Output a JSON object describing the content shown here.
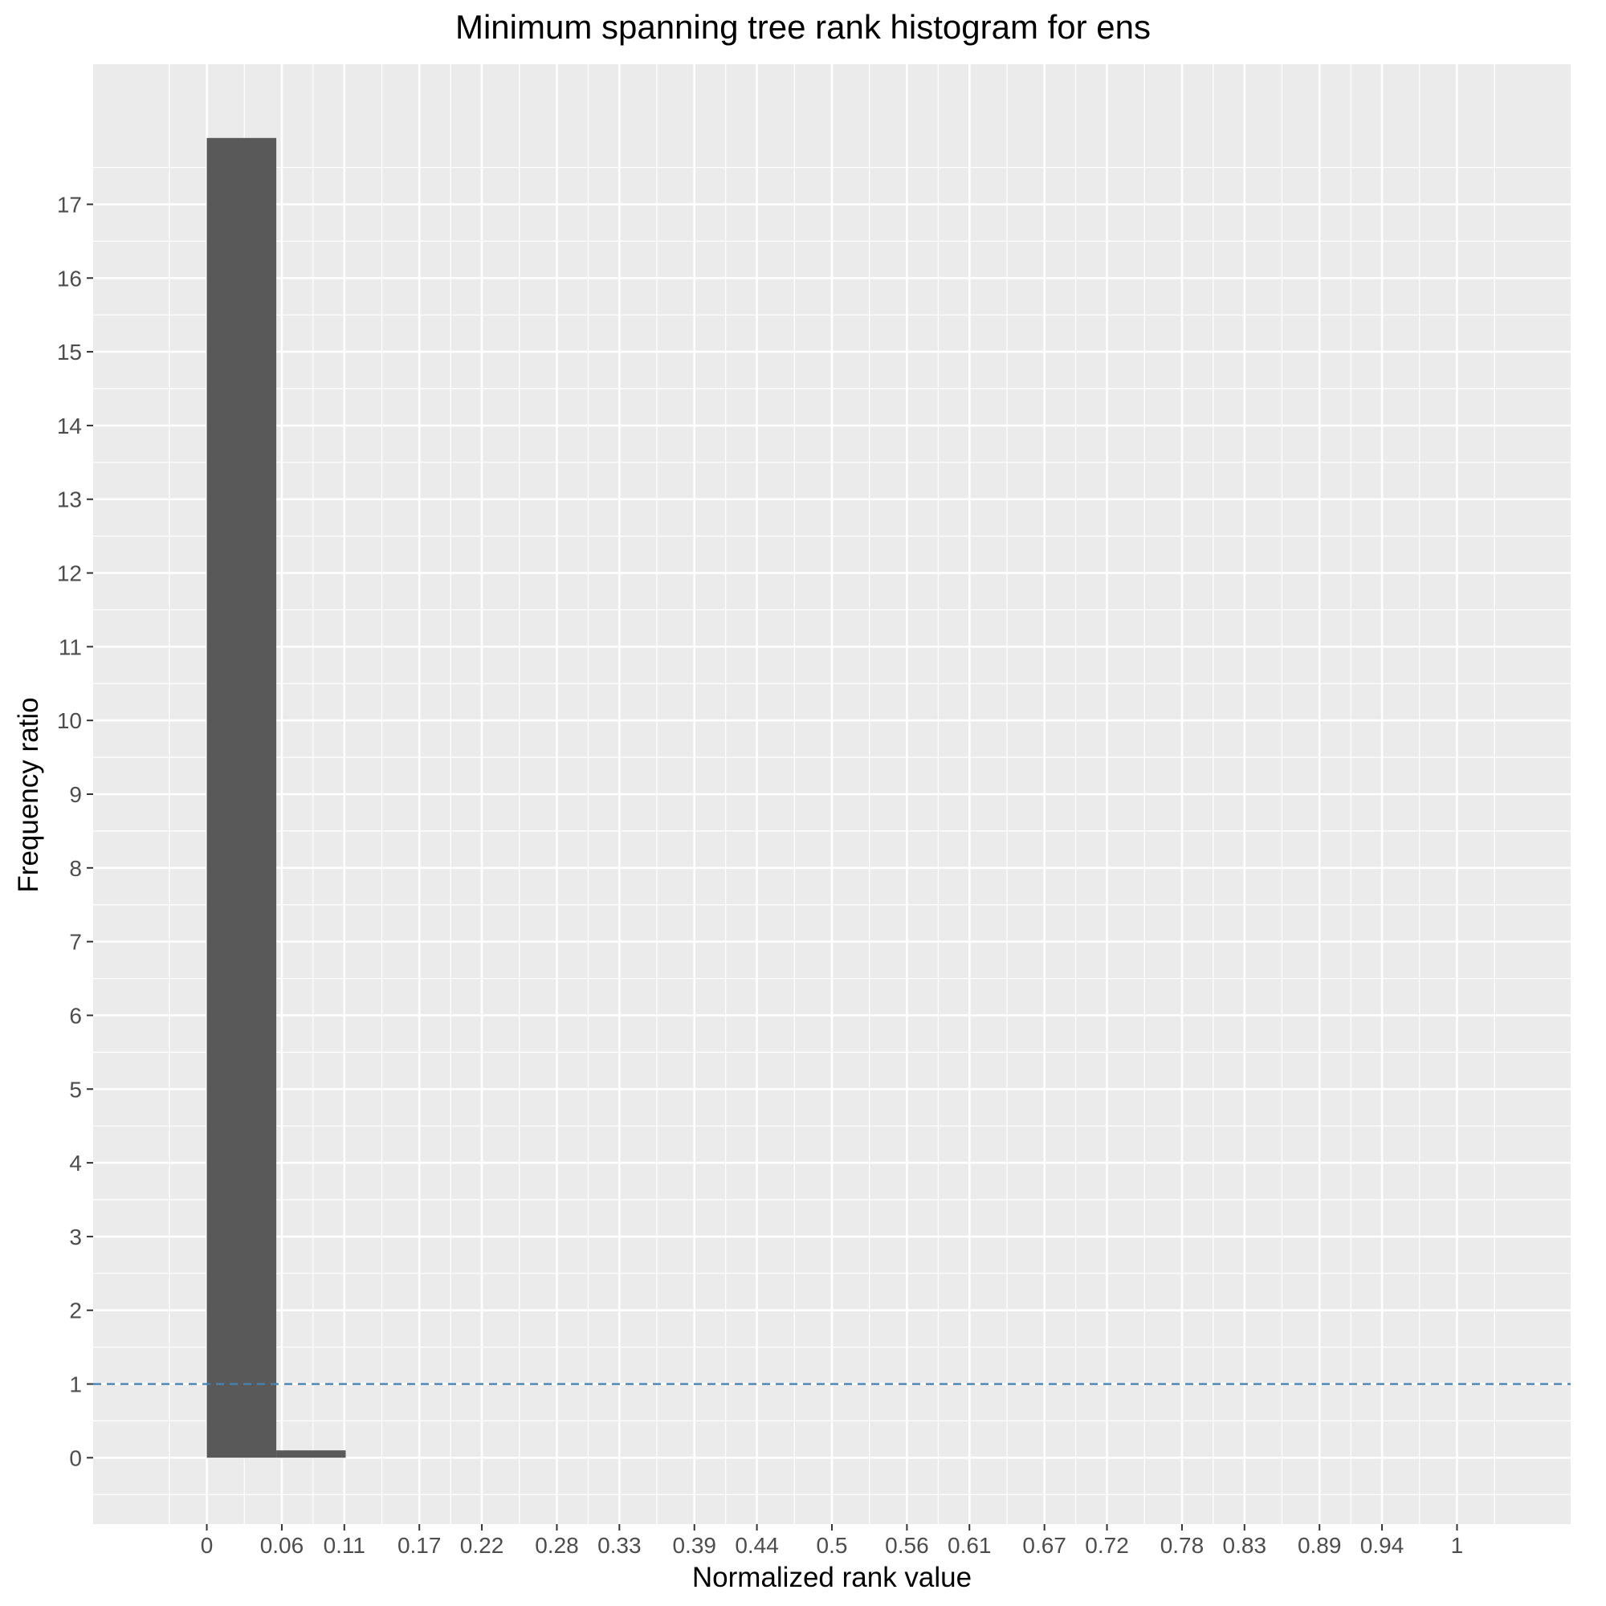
{
  "chart_data": {
    "type": "bar",
    "title": "Minimum spanning tree rank histogram for ens",
    "xlabel": "Normalized rank value",
    "ylabel": "Frequency ratio",
    "x_ticks": [
      "0",
      "0.06",
      "0.11",
      "0.17",
      "0.22",
      "0.28",
      "0.33",
      "0.39",
      "0.44",
      "0.5",
      "0.56",
      "0.61",
      "0.67",
      "0.72",
      "0.78",
      "0.83",
      "0.89",
      "0.94",
      "1"
    ],
    "y_ticks": [
      "0",
      "1",
      "2",
      "3",
      "4",
      "5",
      "6",
      "7",
      "8",
      "9",
      "10",
      "11",
      "12",
      "13",
      "14",
      "15",
      "16",
      "17"
    ],
    "xlim": [
      -0.0909,
      1.0909
    ],
    "ylim": [
      -0.9,
      18.9
    ],
    "bins": [
      {
        "start": 0.0,
        "end": 0.0556,
        "value": 17.9
      },
      {
        "start": 0.0556,
        "end": 0.1111,
        "value": 0.1
      }
    ],
    "reference_line": {
      "y": 1,
      "style": "dashed",
      "color": "#4682B4"
    },
    "colors": {
      "bar": "#595959",
      "panel": "#EBEBEB",
      "grid": "#FFFFFF"
    },
    "grid": true,
    "legend": "none"
  }
}
